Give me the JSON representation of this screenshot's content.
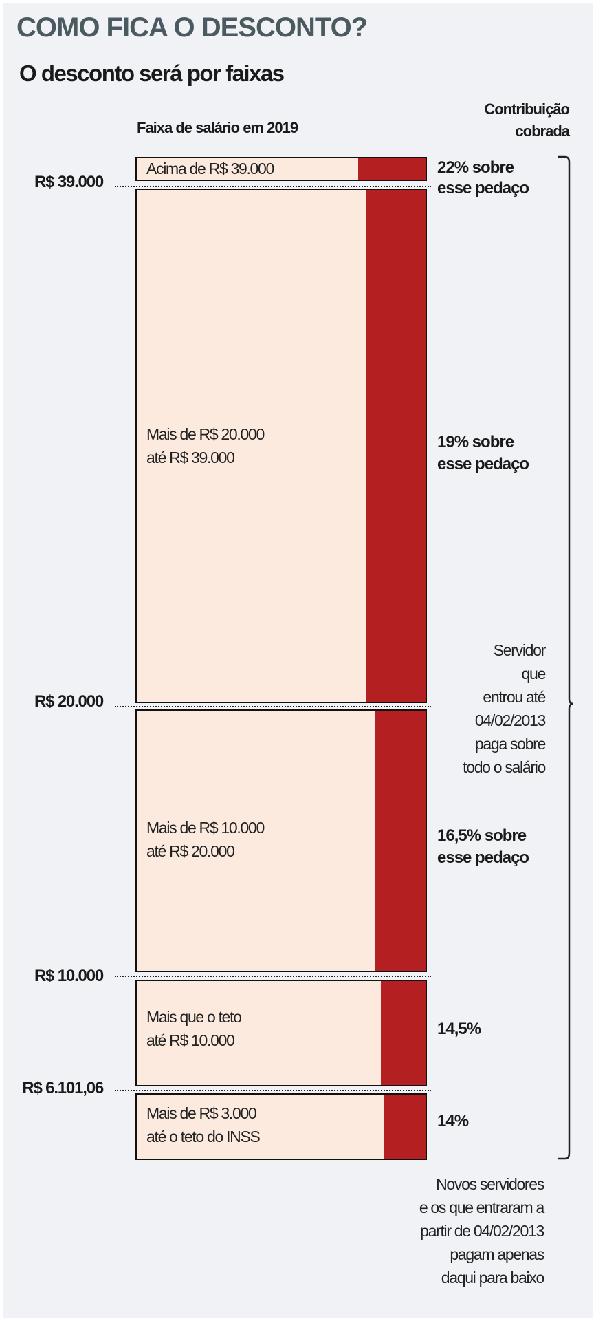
{
  "title": "COMO FICA O DESCONTO?",
  "subtitle": "O desconto será por faixas",
  "column_headers": {
    "salary": "Faixa de salário em 2019",
    "contribution_line1": "Contribuição",
    "contribution_line2": "cobrada"
  },
  "levels": [
    "R$ 39.000",
    "R$ 20.000",
    "R$ 10.000",
    "R$ 6.101,06"
  ],
  "bands": [
    {
      "line1": "Acima de R$ 39.000",
      "line2": "",
      "rate_line1": "22% sobre",
      "rate_line2": "esse pedaço",
      "rate": 22
    },
    {
      "line1": "Mais de R$ 20.000",
      "line2": "até R$ 39.000",
      "rate_line1": "19% sobre",
      "rate_line2": "esse pedaço",
      "rate": 19
    },
    {
      "line1": "Mais de R$ 10.000",
      "line2": "até R$ 20.000",
      "rate_line1": "16,5% sobre",
      "rate_line2": "esse pedaço",
      "rate": 16.5
    },
    {
      "line1": "Mais que o teto",
      "line2": "até R$ 10.000",
      "rate_line1": "14,5%",
      "rate_line2": "",
      "rate": 14.5
    },
    {
      "line1": "Mais de R$ 3.000",
      "line2": "até o teto do INSS",
      "rate_line1": "14%",
      "rate_line2": "",
      "rate": 14
    }
  ],
  "notes": {
    "old_servants": [
      "Servidor",
      "que",
      "entrou até",
      "04/02/2013",
      "paga sobre",
      "todo o salário"
    ],
    "new_servants": [
      "Novos servidores",
      "e os que entraram a",
      "partir de 04/02/2013",
      "pagam apenas",
      "daqui para baixo"
    ]
  },
  "colors": {
    "band_fill": "#fdeade",
    "rate_bar": "#b41f21",
    "title": "#4a5a60",
    "background": "#f0f2f5"
  }
}
